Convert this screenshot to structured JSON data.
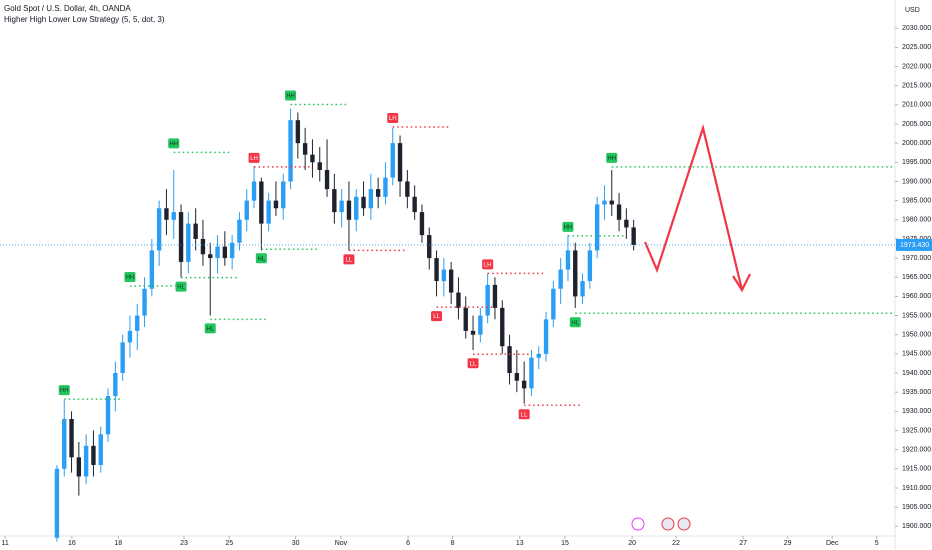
{
  "chart_data": {
    "type": "candlestick",
    "title": "Gold Spot / U.S. Dollar, 4h, OANDA",
    "subtitle": "Higher High Lower Low Strategy (5, 5, dot, 3)",
    "currency": "USD",
    "up_color": "#2a9df4",
    "down_color": "#1e222d",
    "x": [
      0,
      1,
      2,
      3,
      4,
      5,
      6,
      7,
      8,
      9,
      10,
      11,
      12,
      13,
      14,
      15,
      16,
      17,
      18,
      19,
      20,
      21,
      22,
      23,
      24,
      25,
      26,
      27,
      28,
      29,
      30,
      31,
      32,
      33,
      34,
      35,
      36,
      37,
      38,
      39,
      40,
      41,
      42,
      43,
      44,
      45,
      46,
      47,
      48,
      49,
      50,
      51,
      52,
      53,
      54,
      55,
      56,
      57,
      58,
      59,
      60,
      61,
      62,
      63,
      64,
      65,
      66,
      67,
      68,
      69,
      70,
      71,
      72,
      73,
      74,
      75,
      76,
      77,
      78,
      79
    ],
    "open": [
      1897,
      1915,
      1928,
      1918,
      1913,
      1921,
      1916,
      1924,
      1934,
      1940,
      1948,
      1951,
      1955,
      1962,
      1972,
      1983,
      1980,
      1982,
      1969,
      1979,
      1975,
      1971,
      1970,
      1973,
      1970,
      1974,
      1980,
      1985,
      1990,
      1979,
      1985,
      1983,
      1990,
      2006,
      2000,
      1997,
      1995,
      1993,
      1988,
      1982,
      1985,
      1980,
      1986,
      1983,
      1988,
      1986,
      1991,
      2000,
      1990,
      1986,
      1982,
      1976,
      1970,
      1964,
      1967,
      1961,
      1957,
      1951,
      1950,
      1955,
      1963,
      1957,
      1947,
      1940,
      1938,
      1936,
      1944,
      1945,
      1954,
      1962,
      1967,
      1972,
      1960,
      1964,
      1972,
      1984,
      1985,
      1984,
      1980,
      1978
    ],
    "high": [
      1916,
      1933,
      1930,
      1922,
      1924,
      1925,
      1926,
      1936,
      1943,
      1950,
      1955,
      1958,
      1965,
      1975,
      1985,
      1988,
      1993,
      1984,
      1982,
      1983,
      1980,
      1974,
      1976,
      1977,
      1976,
      1982,
      1988,
      1994,
      1991,
      1987,
      1990,
      1992,
      2009,
      2008,
      2004,
      2001,
      1999,
      2001,
      1992,
      1988,
      1990,
      1988,
      1990,
      1992,
      1991,
      1995,
      2004,
      2002,
      1993,
      1989,
      1984,
      1978,
      1972,
      1970,
      1969,
      1965,
      1960,
      1955,
      1957,
      1966,
      1965,
      1959,
      1950,
      1946,
      1943,
      1946,
      1947,
      1956,
      1964,
      1970,
      1976,
      1974,
      1966,
      1974,
      1986,
      1989,
      1993,
      1987,
      1983,
      1980
    ],
    "low": [
      1896,
      1913,
      1914,
      1908,
      1911,
      1913,
      1914,
      1922,
      1930,
      1938,
      1944,
      1946,
      1952,
      1960,
      1968,
      1976,
      1975,
      1965,
      1966,
      1972,
      1968,
      1955,
      1966,
      1968,
      1967,
      1972,
      1977,
      1983,
      1972,
      1977,
      1981,
      1980,
      1988,
      1996,
      1993,
      1991,
      1990,
      1986,
      1979,
      1978,
      1972,
      1977,
      1981,
      1980,
      1983,
      1984,
      1989,
      1986,
      1983,
      1980,
      1974,
      1967,
      1960,
      1960,
      1958,
      1954,
      1949,
      1946,
      1948,
      1953,
      1954,
      1945,
      1937,
      1935,
      1932,
      1934,
      1941,
      1943,
      1952,
      1958,
      1964,
      1957,
      1958,
      1962,
      1970,
      1980,
      1981,
      1977,
      1975,
      1972
    ],
    "close": [
      1915,
      1928,
      1918,
      1913,
      1921,
      1916,
      1924,
      1934,
      1940,
      1948,
      1951,
      1955,
      1962,
      1972,
      1983,
      1980,
      1982,
      1969,
      1979,
      1975,
      1971,
      1970,
      1973,
      1970,
      1974,
      1980,
      1985,
      1990,
      1979,
      1985,
      1983,
      1990,
      2006,
      2000,
      1997,
      1995,
      1993,
      1988,
      1982,
      1985,
      1980,
      1986,
      1983,
      1988,
      1986,
      1991,
      2000,
      1990,
      1986,
      1982,
      1976,
      1970,
      1964,
      1967,
      1961,
      1957,
      1951,
      1950,
      1955,
      1963,
      1957,
      1947,
      1940,
      1938,
      1936,
      1944,
      1945,
      1954,
      1962,
      1967,
      1972,
      1960,
      1964,
      1972,
      1984,
      1985,
      1984,
      1980,
      1978,
      1973.43
    ],
    "last_price": {
      "value": 1973.43,
      "label": "1973.430"
    },
    "pivots": [
      {
        "label": "HH",
        "candle": 1,
        "price": 1933.2
      },
      {
        "label": "HH",
        "candle": 10,
        "price": 1962.7
      },
      {
        "label": "HH",
        "candle": 16,
        "price": 1997.6
      },
      {
        "label": "HL",
        "candle": 17,
        "price": 1964.9
      },
      {
        "label": "HL",
        "candle": 21,
        "price": 1954.0
      },
      {
        "label": "LH",
        "candle": 27,
        "price": 1993.8
      },
      {
        "label": "HL",
        "candle": 28,
        "price": 1972.3
      },
      {
        "label": "HH",
        "candle": 32,
        "price": 2010.1
      },
      {
        "label": "LL",
        "candle": 40,
        "price": 1972.0
      },
      {
        "label": "LH",
        "candle": 46,
        "price": 2004.2
      },
      {
        "label": "LL",
        "candle": 52,
        "price": 1957.2
      },
      {
        "label": "LL",
        "candle": 57,
        "price": 1944.9
      },
      {
        "label": "LH",
        "candle": 59,
        "price": 1966.0
      },
      {
        "label": "LL",
        "candle": 64,
        "price": 1931.6
      },
      {
        "label": "HH",
        "candle": 70,
        "price": 1975.8
      },
      {
        "label": "HL",
        "candle": 71,
        "price": 1955.6
      },
      {
        "label": "HH",
        "candle": 76,
        "price": 1993.8
      }
    ],
    "ylim": [
      1897.46,
      2036.32
    ],
    "yticks": [
      {
        "value": 2030,
        "label": "2030.000"
      },
      {
        "value": 2025,
        "label": "2025.000"
      },
      {
        "value": 2020,
        "label": "2020.000"
      },
      {
        "value": 2015,
        "label": "2015.000"
      },
      {
        "value": 2010,
        "label": "2010.000"
      },
      {
        "value": 2005,
        "label": "2005.000"
      },
      {
        "value": 2000,
        "label": "2000.000"
      },
      {
        "value": 1995,
        "label": "1995.000"
      },
      {
        "value": 1990,
        "label": "1990.000"
      },
      {
        "value": 1985,
        "label": "1985.000"
      },
      {
        "value": 1980,
        "label": "1980.000"
      },
      {
        "value": 1975,
        "label": "1975.000"
      },
      {
        "value": 1970,
        "label": "1970.000"
      },
      {
        "value": 1965,
        "label": "1965.000"
      },
      {
        "value": 1960,
        "label": "1960.000"
      },
      {
        "value": 1955,
        "label": "1955.000"
      },
      {
        "value": 1950,
        "label": "1950.000"
      },
      {
        "value": 1945,
        "label": "1945.000"
      },
      {
        "value": 1940,
        "label": "1940.000"
      },
      {
        "value": 1935,
        "label": "1935.000"
      },
      {
        "value": 1930,
        "label": "1930.000"
      },
      {
        "value": 1925,
        "label": "1925.000"
      },
      {
        "value": 1920,
        "label": "1920.000"
      },
      {
        "value": 1915,
        "label": "1915.000"
      },
      {
        "value": 1910,
        "label": "1910.000"
      },
      {
        "value": 1905,
        "label": "1905.000"
      },
      {
        "value": 1900,
        "label": "1900.000"
      }
    ],
    "xlim": [
      -7.8,
      114.8
    ],
    "xticks": [
      {
        "value": -7.1,
        "label": "11"
      },
      {
        "value": 2.05,
        "label": "16"
      },
      {
        "value": 8.4,
        "label": "18"
      },
      {
        "value": 17.4,
        "label": "23"
      },
      {
        "value": 23.6,
        "label": "25"
      },
      {
        "value": 32.7,
        "label": "30"
      },
      {
        "value": 38.9,
        "label": "Nov"
      },
      {
        "value": 48.1,
        "label": "6"
      },
      {
        "value": 54.2,
        "label": "8"
      },
      {
        "value": 63.4,
        "label": "13"
      },
      {
        "value": 69.6,
        "label": "15"
      },
      {
        "value": 78.8,
        "label": "20"
      },
      {
        "value": 84.8,
        "label": "22"
      },
      {
        "value": 94,
        "label": "27"
      },
      {
        "value": 100.1,
        "label": "29"
      },
      {
        "value": 106.2,
        "label": "Dec"
      },
      {
        "value": 112.3,
        "label": "5"
      }
    ]
  }
}
